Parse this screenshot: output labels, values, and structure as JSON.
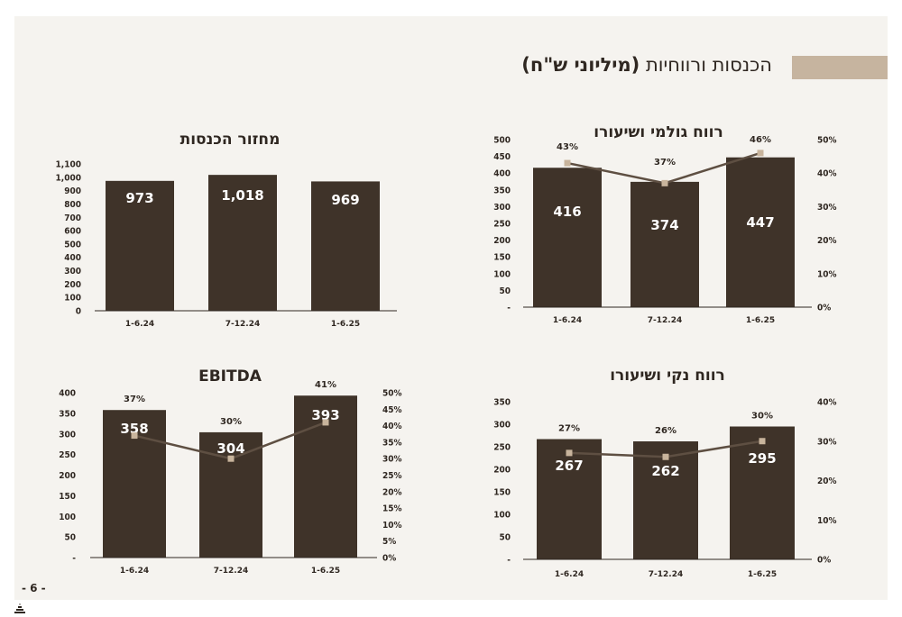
{
  "page": {
    "title_main": "הכנסות ורווחיות",
    "title_paren": "(מיליוני ש\"ח)",
    "page_number": "- 6 -"
  },
  "colors": {
    "bar": "#3f3329",
    "line": "#5e4f42",
    "marker": "#c8b49c",
    "accent_bar": "#c6b49f"
  },
  "chart_data": [
    {
      "id": "revenue",
      "type": "bar",
      "title": "מחזור הכנסות",
      "categories": [
        "1-6.24",
        "7-12.24",
        "1-6.25"
      ],
      "series": [
        {
          "values": [
            973,
            1018,
            969
          ],
          "labels": [
            "973",
            "1,018",
            "969"
          ]
        }
      ],
      "yticks": [
        "0",
        "100",
        "200",
        "300",
        "400",
        "500",
        "600",
        "700",
        "800",
        "900",
        "1,000",
        "1,100"
      ],
      "ylim": [
        0,
        1100
      ]
    },
    {
      "id": "gross",
      "type": "bar",
      "title": "רווח גולמי ושיעורו",
      "categories": [
        "1-6.24",
        "7-12.24",
        "1-6.25"
      ],
      "series": [
        {
          "values": [
            416,
            374,
            447
          ],
          "labels": [
            "416",
            "374",
            "447"
          ]
        },
        {
          "type": "line",
          "values": [
            43,
            37,
            46
          ],
          "labels": [
            "43%",
            "37%",
            "46%"
          ]
        }
      ],
      "yticks": [
        "-",
        "50",
        "100",
        "150",
        "200",
        "250",
        "300",
        "350",
        "400",
        "450",
        "500"
      ],
      "ylim": [
        0,
        500
      ],
      "y2ticks": [
        "0%",
        "10%",
        "20%",
        "30%",
        "40%",
        "50%"
      ],
      "y2lim": [
        0,
        50
      ]
    },
    {
      "id": "ebitda",
      "type": "bar",
      "title": "EBITDA",
      "categories": [
        "1-6.24",
        "7-12.24",
        "1-6.25"
      ],
      "series": [
        {
          "values": [
            358,
            304,
            393
          ],
          "labels": [
            "358",
            "304",
            "393"
          ]
        },
        {
          "type": "line",
          "values": [
            37,
            30,
            41
          ],
          "labels": [
            "37%",
            "30%",
            "41%"
          ]
        }
      ],
      "yticks": [
        "-",
        "50",
        "100",
        "150",
        "200",
        "250",
        "300",
        "350",
        "400"
      ],
      "ylim": [
        0,
        400
      ],
      "y2ticks": [
        "0%",
        "5%",
        "10%",
        "15%",
        "20%",
        "25%",
        "30%",
        "35%",
        "40%",
        "45%",
        "50%"
      ],
      "y2lim": [
        0,
        50
      ]
    },
    {
      "id": "net",
      "type": "bar",
      "title": "רווח נקי ושיעורו",
      "categories": [
        "1-6.24",
        "7-12.24",
        "1-6.25"
      ],
      "series": [
        {
          "values": [
            267,
            262,
            295
          ],
          "labels": [
            "267",
            "262",
            "295"
          ]
        },
        {
          "type": "line",
          "values": [
            27,
            26,
            30
          ],
          "labels": [
            "27%",
            "26%",
            "30%"
          ]
        }
      ],
      "yticks": [
        "-",
        "50",
        "100",
        "150",
        "200",
        "250",
        "300",
        "350"
      ],
      "ylim": [
        0,
        350
      ],
      "y2ticks": [
        "0%",
        "10%",
        "20%",
        "30%",
        "40%"
      ],
      "y2lim": [
        0,
        40
      ]
    }
  ]
}
